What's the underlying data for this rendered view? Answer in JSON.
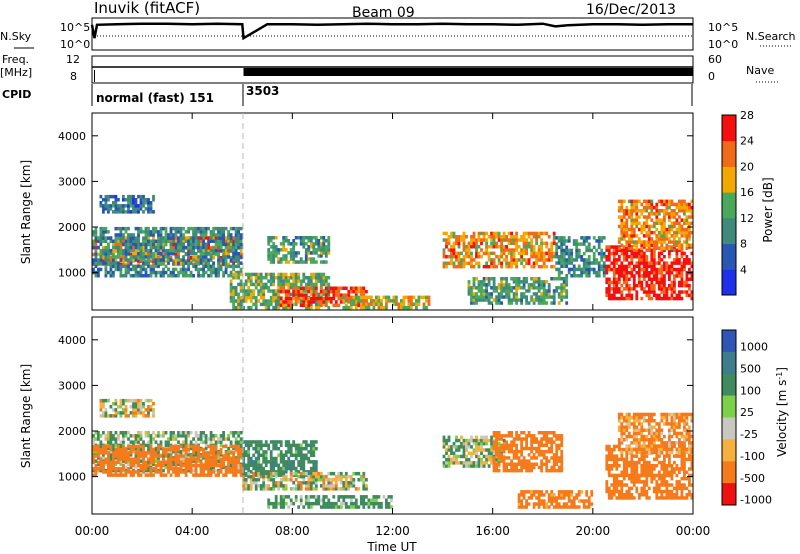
{
  "header": {
    "station": "Inuvik (fitACF)",
    "beam": "Beam 09",
    "date": "16/Dec/2013"
  },
  "left_labels": {
    "nsky": "N.Sky",
    "freq": "Freq.",
    "freq_unit": "[MHz]",
    "cpid": "CPID"
  },
  "right_labels": {
    "nsearch": "N.Search",
    "nave": "Nave"
  },
  "cpid_strip": {
    "mode1": "normal (fast) 151",
    "mode2": "3503"
  },
  "xaxis": {
    "label": "Time UT",
    "ticks": [
      "00:00",
      "04:00",
      "08:00",
      "12:00",
      "16:00",
      "20:00",
      "00:00"
    ]
  },
  "power_colorbar": {
    "label": "Power [dB]",
    "ticks": [
      "4",
      "8",
      "12",
      "16",
      "20",
      "24",
      "28"
    ],
    "colors": [
      "#1e30e8",
      "#2a57b4",
      "#3f8a7a",
      "#4aa85a",
      "#f2a800",
      "#f06a1a",
      "#f51010"
    ]
  },
  "velocity_colorbar": {
    "label": "Velocity [m s",
    "label_sup": "-1",
    "label_end": "]",
    "ticks": [
      "1000",
      "500",
      "100",
      "25",
      "-25",
      "-100",
      "-500",
      "-1000"
    ],
    "colors": [
      "#2f56b5",
      "#3e7e8c",
      "#3f8a5e",
      "#7ed04a",
      "#c8c8c0",
      "#f5b040",
      "#f57a1c",
      "#f01010"
    ]
  },
  "chart_data": [
    {
      "type": "line",
      "title": "",
      "panel": "noise",
      "ylabels_left": [
        "10^5",
        "10^0"
      ],
      "ylabels_right": [
        "10^5",
        "10^0"
      ],
      "series": [
        {
          "name": "N.Sky",
          "x": [
            0,
            0.1,
            0.2,
            1,
            2,
            3,
            4,
            5,
            6,
            6.05,
            7,
            8,
            9,
            10,
            11,
            12,
            13,
            14,
            15,
            16,
            17,
            18,
            18.5,
            19,
            20,
            21,
            22,
            23,
            24
          ],
          "values": [
            4.5,
            2,
            4.5,
            4.6,
            4.7,
            4.7,
            4.6,
            4.7,
            4.6,
            2,
            4.6,
            4.6,
            4.5,
            4.6,
            4.7,
            4.6,
            4.6,
            4.7,
            4.6,
            4.6,
            4.5,
            4.7,
            4.2,
            4.4,
            4.6,
            4.6,
            4.5,
            4.6,
            4.6
          ]
        }
      ]
    },
    {
      "type": "line",
      "panel": "freq_nave",
      "ylabels_left": [
        "12",
        "8"
      ],
      "ylabels_right": [
        "60",
        "0"
      ],
      "series": [
        {
          "name": "Freq.",
          "x": [
            0,
            0.1,
            6,
            6.05,
            24
          ],
          "values": [
            10.5,
            10.5,
            10.5,
            10.5,
            10.5
          ]
        }
      ]
    },
    {
      "type": "heatmap",
      "panel": "power",
      "xlabel": "Time UT",
      "ylabel": "Slant Range [km]",
      "xlim": [
        0,
        24
      ],
      "ylim": [
        180,
        4500
      ],
      "yticks": [
        1000,
        2000,
        3000,
        4000
      ],
      "value_label": "Power [dB]",
      "blobs": [
        {
          "t0": 0.0,
          "t1": 6.0,
          "r0": 1150,
          "r1": 1800,
          "v": 22
        },
        {
          "t0": 0.0,
          "t1": 6.0,
          "r0": 900,
          "r1": 2000,
          "v": 12
        },
        {
          "t0": 0.3,
          "t1": 2.5,
          "r0": 2300,
          "r1": 2700,
          "v": 10
        },
        {
          "t0": 5.5,
          "t1": 9.5,
          "r0": 200,
          "r1": 1000,
          "v": 16
        },
        {
          "t0": 7.0,
          "t1": 9.5,
          "r0": 1200,
          "r1": 1800,
          "v": 14
        },
        {
          "t0": 7.5,
          "t1": 11.0,
          "r0": 250,
          "r1": 700,
          "v": 26
        },
        {
          "t0": 10.0,
          "t1": 13.5,
          "r0": 200,
          "r1": 500,
          "v": 20
        },
        {
          "t0": 14.0,
          "t1": 18.5,
          "r0": 1100,
          "r1": 1900,
          "v": 22
        },
        {
          "t0": 15.0,
          "t1": 19.0,
          "r0": 300,
          "r1": 900,
          "v": 14
        },
        {
          "t0": 18.5,
          "t1": 20.5,
          "r0": 900,
          "r1": 1800,
          "v": 12
        },
        {
          "t0": 20.5,
          "t1": 24.0,
          "r0": 400,
          "r1": 1600,
          "v": 28
        },
        {
          "t0": 21.0,
          "t1": 24.0,
          "r0": 1500,
          "r1": 2600,
          "v": 22
        }
      ]
    },
    {
      "type": "heatmap",
      "panel": "velocity",
      "xlabel": "Time UT",
      "ylabel": "Slant Range [km]",
      "xlim": [
        0,
        24
      ],
      "ylim": [
        180,
        4500
      ],
      "yticks": [
        1000,
        2000,
        3000,
        4000
      ],
      "value_label": "Velocity [m s-1]",
      "blobs": [
        {
          "t0": 0.0,
          "t1": 6.0,
          "r0": 1100,
          "r1": 2000,
          "v": 100
        },
        {
          "t0": 0.0,
          "t1": 6.0,
          "r0": 1000,
          "r1": 1700,
          "v": -300
        },
        {
          "t0": 0.3,
          "t1": 2.5,
          "r0": 2300,
          "r1": 2700,
          "v": 0
        },
        {
          "t0": 6.0,
          "t1": 9.0,
          "r0": 1000,
          "r1": 1800,
          "v": 200
        },
        {
          "t0": 6.0,
          "t1": 11.0,
          "r0": 700,
          "r1": 1100,
          "v": 0
        },
        {
          "t0": 7.0,
          "t1": 12.0,
          "r0": 300,
          "r1": 600,
          "v": 150
        },
        {
          "t0": 14.0,
          "t1": 16.5,
          "r0": 1200,
          "r1": 1900,
          "v": 50
        },
        {
          "t0": 16.0,
          "t1": 18.8,
          "r0": 1100,
          "r1": 2000,
          "v": -300
        },
        {
          "t0": 17.0,
          "t1": 20.0,
          "r0": 300,
          "r1": 700,
          "v": -200
        },
        {
          "t0": 20.5,
          "t1": 24.0,
          "r0": 500,
          "r1": 1700,
          "v": -300
        },
        {
          "t0": 21.0,
          "t1": 24.0,
          "r0": 1500,
          "r1": 2400,
          "v": -150
        }
      ]
    }
  ]
}
